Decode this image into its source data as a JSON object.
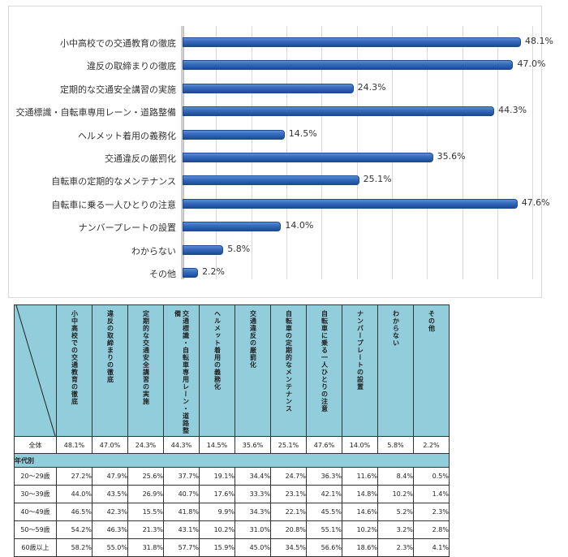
{
  "chart_data": {
    "type": "bar",
    "orientation": "horizontal",
    "title": "",
    "xlabel": "",
    "ylabel": "",
    "xlim": [
      0,
      50
    ],
    "grid": true,
    "legend": null,
    "categories": [
      "小中高校での交通教育の徹底",
      "違反の取締まりの徹底",
      "定期的な交通安全講習の実施",
      "交通標識・自転車専用レーン・道路整備",
      "ヘルメット着用の義務化",
      "交通違反の厳罰化",
      "自転車の定期的なメンテナンス",
      "自転車に乗る一人ひとりの注意",
      "ナンバープレートの設置",
      "わからない",
      "その他"
    ],
    "values": [
      48.1,
      47.0,
      24.3,
      44.3,
      14.5,
      35.6,
      25.1,
      47.6,
      14.0,
      5.8,
      2.2
    ],
    "value_labels": [
      "48.1%",
      "47.0%",
      "24.3%",
      "44.3%",
      "14.5%",
      "35.6%",
      "25.1%",
      "47.6%",
      "14.0%",
      "5.8%",
      "2.2%"
    ],
    "bar_color": "#2e62b0"
  },
  "table": {
    "columns": [
      "小中高校での交通教育の徹底",
      "違反の取締まりの徹底",
      "定期的な交通安全講習の実施",
      "交通標識・自転車専用レーン・道路整備",
      "ヘルメット着用の義務化",
      "交通違反の厳罰化",
      "自転車の定期的なメンテナンス",
      "自転車に乗る一人ひとりの注意",
      "ナンバープレートの設置",
      "わからない",
      "その他"
    ],
    "total": {
      "label": "全体",
      "values": [
        "48.1%",
        "47.0%",
        "24.3%",
        "44.3%",
        "14.5%",
        "35.6%",
        "25.1%",
        "47.6%",
        "14.0%",
        "5.8%",
        "2.2%"
      ]
    },
    "group_label": "年代別",
    "rows": [
      {
        "label": "20～29歳",
        "values": [
          "27.2%",
          "47.9%",
          "25.6%",
          "37.7%",
          "19.1%",
          "34.4%",
          "24.7%",
          "36.3%",
          "11.6%",
          "8.4%",
          "0.5%"
        ]
      },
      {
        "label": "30～39歳",
        "values": [
          "44.0%",
          "43.5%",
          "26.9%",
          "40.7%",
          "17.6%",
          "33.3%",
          "23.1%",
          "42.1%",
          "14.8%",
          "10.2%",
          "1.4%"
        ]
      },
      {
        "label": "40～49歳",
        "values": [
          "46.5%",
          "42.3%",
          "15.5%",
          "41.8%",
          "9.9%",
          "34.3%",
          "22.1%",
          "45.5%",
          "14.6%",
          "5.2%",
          "2.3%"
        ]
      },
      {
        "label": "50～59歳",
        "values": [
          "54.2%",
          "46.3%",
          "21.3%",
          "43.1%",
          "10.2%",
          "31.0%",
          "20.8%",
          "55.1%",
          "10.2%",
          "3.2%",
          "2.8%"
        ]
      },
      {
        "label": "60歳以上",
        "values": [
          "58.2%",
          "55.0%",
          "31.8%",
          "57.7%",
          "15.9%",
          "45.0%",
          "34.5%",
          "56.6%",
          "18.6%",
          "2.3%",
          "4.1%"
        ]
      }
    ],
    "header_color": "#92cddc"
  }
}
